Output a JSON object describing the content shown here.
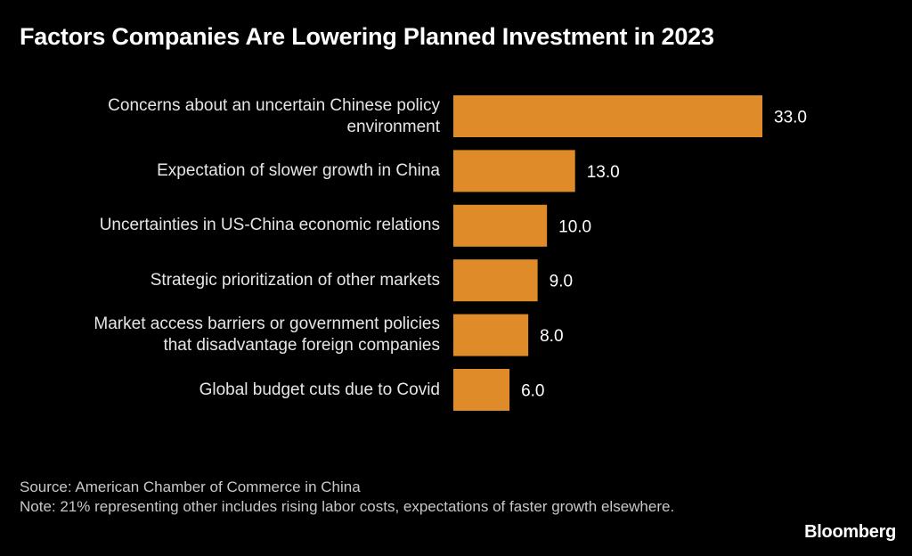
{
  "chart_data": {
    "type": "bar",
    "orientation": "horizontal",
    "title": "Factors Companies Are Lowering Planned Investment in 2023",
    "categories": [
      [
        "Concerns about an uncertain Chinese policy",
        "environment"
      ],
      [
        "Expectation of slower growth in China"
      ],
      [
        "Uncertainties in US-China economic relations"
      ],
      [
        "Strategic prioritization of other markets"
      ],
      [
        "Market access barriers or government policies",
        "that disadvantage foreign companies"
      ],
      [
        "Global budget cuts due to Covid"
      ]
    ],
    "values": [
      33.0,
      13.0,
      10.0,
      9.0,
      8.0,
      6.0
    ],
    "value_labels": [
      "33.0",
      "13.0",
      "10.0",
      "9.0",
      "8.0",
      "6.0"
    ],
    "xlim": [
      0,
      33
    ],
    "bar_color": "#e08b2a",
    "grid": false
  },
  "footer": {
    "source": "Source: American Chamber of Commerce in China",
    "note": "Note: 21% representing other includes rising labor costs, expectations of faster growth elsewhere."
  },
  "brand": "Bloomberg"
}
